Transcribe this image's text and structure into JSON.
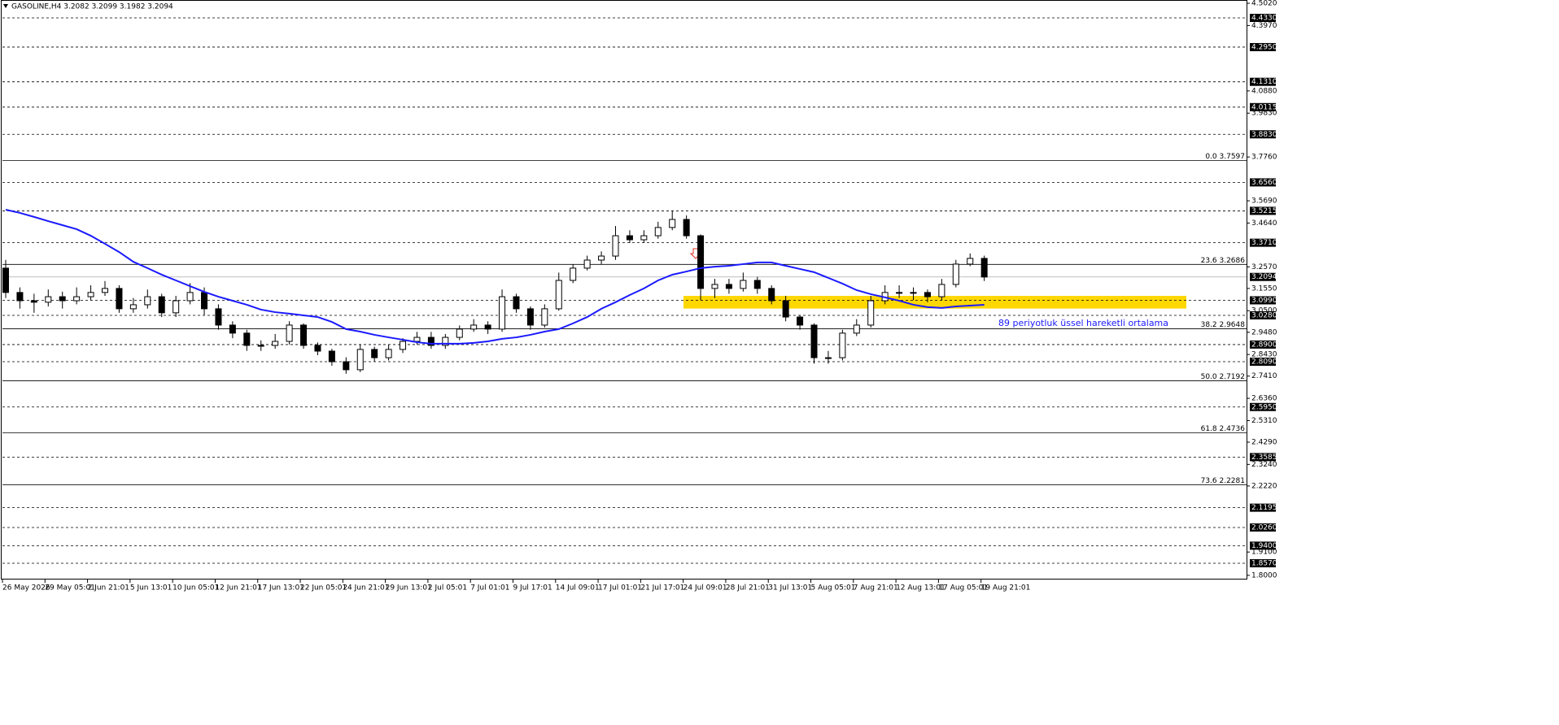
{
  "chart_data": {
    "type": "candlestick",
    "header": "GASOLINE,H4  3.2082 3.2099 3.1982 3.2094",
    "categories": [
      "26 May 2026",
      null,
      null,
      "29 May 05:01",
      null,
      null,
      "2 Jun 21:01",
      null,
      null,
      "5 Jun 13:01",
      null,
      null,
      "10 Jun 05:01",
      null,
      null,
      "12 Jun 21:01",
      null,
      null,
      "17 Jun 13:01",
      null,
      null,
      "22 Jun 05:01",
      null,
      null,
      "24 Jun 21:01",
      null,
      null,
      "29 Jun 13:01",
      null,
      null,
      "2 Jul 05:01",
      null,
      null,
      "7 Jul 01:01",
      null,
      null,
      "9 Jul 17:01",
      null,
      null,
      "14 Jul 09:01",
      null,
      null,
      "17 Jul 01:01",
      null,
      null,
      "21 Jul 17:01",
      null,
      null,
      "24 Jul 09:01",
      null,
      null,
      "28 Jul 21:01",
      null,
      null,
      "31 Jul 13:01",
      null,
      null,
      "5 Aug 05:01",
      null,
      null,
      "7 Aug 21:01",
      null,
      null,
      "12 Aug 13:01",
      null,
      null,
      "17 Aug 05:01",
      null,
      null,
      "19 Aug 21:01"
    ],
    "open": [
      3.251,
      3.136,
      3.097,
      3.09,
      3.116,
      3.097,
      3.116,
      3.136,
      3.155,
      3.059,
      3.078,
      3.116,
      3.04,
      3.097,
      3.136,
      3.059,
      2.982,
      2.944,
      2.886,
      2.886,
      2.905,
      2.982,
      2.886,
      2.859,
      2.809,
      2.771,
      2.867,
      2.828,
      2.867,
      2.905,
      2.924,
      2.886,
      2.924,
      2.963,
      2.982,
      2.963,
      3.116,
      3.059,
      2.982,
      3.059,
      3.193,
      3.251,
      3.289,
      3.308,
      3.404,
      3.385,
      3.404,
      3.443,
      3.481,
      3.404,
      3.155,
      3.174,
      3.155,
      3.193,
      3.155,
      3.097,
      3.02,
      2.982,
      2.828,
      2.828,
      2.944,
      2.982,
      3.097,
      3.136,
      3.136,
      3.136,
      3.116,
      3.174,
      3.27,
      3.297
    ],
    "high": [
      3.29,
      3.16,
      3.13,
      3.15,
      3.14,
      3.16,
      3.17,
      3.19,
      3.17,
      3.11,
      3.15,
      3.13,
      3.12,
      3.18,
      3.16,
      3.08,
      3.0,
      2.96,
      2.91,
      2.94,
      3.0,
      2.99,
      2.9,
      2.87,
      2.83,
      2.89,
      2.88,
      2.89,
      2.92,
      2.95,
      2.95,
      2.94,
      2.98,
      3.01,
      3.0,
      3.15,
      3.13,
      3.07,
      3.08,
      3.23,
      3.27,
      3.31,
      3.33,
      3.45,
      3.43,
      3.43,
      3.47,
      3.522,
      3.5,
      3.41,
      3.2,
      3.2,
      3.23,
      3.21,
      3.17,
      3.12,
      3.03,
      2.99,
      2.86,
      2.96,
      3.01,
      3.12,
      3.17,
      3.17,
      3.16,
      3.15,
      3.2,
      3.29,
      3.32,
      3.31
    ],
    "low": [
      3.11,
      3.06,
      3.04,
      3.07,
      3.06,
      3.08,
      3.1,
      3.12,
      3.04,
      3.04,
      3.06,
      3.02,
      3.02,
      3.08,
      3.03,
      2.96,
      2.92,
      2.86,
      2.86,
      2.87,
      2.89,
      2.87,
      2.84,
      2.79,
      2.752,
      2.76,
      2.81,
      2.815,
      2.85,
      2.89,
      2.87,
      2.87,
      2.91,
      2.95,
      2.94,
      2.95,
      3.04,
      2.96,
      2.97,
      3.05,
      3.18,
      3.24,
      3.27,
      3.29,
      3.37,
      3.37,
      3.39,
      3.43,
      3.39,
      3.1,
      3.11,
      3.13,
      3.14,
      3.13,
      3.08,
      3.0,
      2.96,
      2.8,
      2.8,
      2.815,
      2.93,
      2.97,
      3.08,
      3.11,
      3.1,
      3.09,
      3.1,
      3.16,
      3.26,
      3.19
    ],
    "close": [
      3.136,
      3.097,
      3.09,
      3.116,
      3.097,
      3.116,
      3.136,
      3.155,
      3.059,
      3.078,
      3.116,
      3.04,
      3.097,
      3.136,
      3.059,
      2.982,
      2.944,
      2.886,
      2.886,
      2.905,
      2.982,
      2.886,
      2.859,
      2.809,
      2.771,
      2.867,
      2.828,
      2.867,
      2.905,
      2.924,
      2.886,
      2.924,
      2.963,
      2.982,
      2.963,
      3.116,
      3.059,
      2.982,
      3.059,
      3.193,
      3.251,
      3.289,
      3.308,
      3.404,
      3.385,
      3.404,
      3.443,
      3.481,
      3.404,
      3.155,
      3.174,
      3.155,
      3.193,
      3.155,
      3.097,
      3.02,
      2.982,
      2.828,
      2.828,
      2.944,
      2.982,
      3.097,
      3.136,
      3.136,
      3.136,
      3.116,
      3.174,
      3.27,
      3.297,
      3.209
    ],
    "ma": {
      "color": "#1a1aff",
      "values": [
        3.527,
        3.512,
        3.493,
        3.473,
        3.454,
        3.435,
        3.404,
        3.366,
        3.327,
        3.281,
        3.251,
        3.22,
        3.193,
        3.166,
        3.139,
        3.116,
        3.097,
        3.078,
        3.055,
        3.043,
        3.036,
        3.028,
        3.02,
        2.997,
        2.963,
        2.951,
        2.936,
        2.924,
        2.913,
        2.901,
        2.894,
        2.894,
        2.894,
        2.898,
        2.905,
        2.917,
        2.924,
        2.936,
        2.951,
        2.963,
        2.99,
        3.02,
        3.059,
        3.09,
        3.124,
        3.155,
        3.193,
        3.22,
        3.235,
        3.251,
        3.258,
        3.262,
        3.27,
        3.278,
        3.278,
        3.262,
        3.247,
        3.232,
        3.205,
        3.178,
        3.147,
        3.128,
        3.113,
        3.097,
        3.078,
        3.067,
        3.063,
        3.07,
        3.074,
        3.078
      ]
    },
    "annotation": "89 periyotluk üssel hareketli ortalama",
    "zone": {
      "range": [
        3.06,
        3.12
      ],
      "color": "#ffd700"
    },
    "levels": [
      {
        "value": 4.433,
        "label": "4.4330"
      },
      {
        "value": 4.295,
        "label": "4.2950"
      },
      {
        "value": 4.131,
        "label": "4.1310"
      },
      {
        "value": 4.0115,
        "label": "4.0115"
      },
      {
        "value": 3.883,
        "label": "3.8830"
      },
      {
        "value": 3.656,
        "label": "3.6560"
      },
      {
        "value": 3.5215,
        "label": "3.5215"
      },
      {
        "value": 3.371,
        "label": "3.3710"
      },
      {
        "value": 3.099,
        "label": "3.0990"
      },
      {
        "value": 3.028,
        "label": "3.0280"
      },
      {
        "value": 2.89,
        "label": "2.8900"
      },
      {
        "value": 2.809,
        "label": "2.8090"
      },
      {
        "value": 2.595,
        "label": "2.5950"
      },
      {
        "value": 2.3585,
        "label": "2.3585"
      },
      {
        "value": 2.1195,
        "label": "2.1195"
      },
      {
        "value": 2.026,
        "label": "2.0260"
      },
      {
        "value": 1.94,
        "label": "1.9400"
      },
      {
        "value": 1.857,
        "label": "1.8570"
      }
    ],
    "fib": [
      {
        "value": 3.7597,
        "label": "0.0 3.7597"
      },
      {
        "value": 3.2686,
        "label": "23.6 3.2686"
      },
      {
        "value": 2.9648,
        "label": "38.2 2.9648"
      },
      {
        "value": 2.7192,
        "label": "50.0 2.7192"
      },
      {
        "value": 2.4736,
        "label": "61.8 2.4736"
      },
      {
        "value": 2.2281,
        "label": "73.6 2.2281"
      }
    ],
    "current_price": {
      "value": 3.2094,
      "label": "3.2094"
    },
    "ylim": [
      1.7802,
      4.5175
    ],
    "yticks": [
      {
        "value": 4.502,
        "label": "4.5020"
      },
      {
        "value": 4.397,
        "label": "4.3970"
      },
      {
        "value": 4.088,
        "label": "4.0880"
      },
      {
        "value": 3.983,
        "label": "3.9830"
      },
      {
        "value": 3.776,
        "label": "3.7760"
      },
      {
        "value": 3.569,
        "label": "3.5690"
      },
      {
        "value": 3.464,
        "label": "3.4640"
      },
      {
        "value": 3.257,
        "label": "3.2570"
      },
      {
        "value": 3.155,
        "label": "3.1550"
      },
      {
        "value": 3.05,
        "label": "3.0500"
      },
      {
        "value": 2.948,
        "label": "2.9480"
      },
      {
        "value": 2.843,
        "label": "2.8430"
      },
      {
        "value": 2.741,
        "label": "2.7410"
      },
      {
        "value": 2.636,
        "label": "2.6360"
      },
      {
        "value": 2.531,
        "label": "2.5310"
      },
      {
        "value": 2.429,
        "label": "2.4290"
      },
      {
        "value": 2.324,
        "label": "2.3240"
      },
      {
        "value": 2.222,
        "label": "2.2220"
      },
      {
        "value": 1.91,
        "label": "1.9100"
      },
      {
        "value": 1.8,
        "label": "1.8000"
      }
    ]
  }
}
